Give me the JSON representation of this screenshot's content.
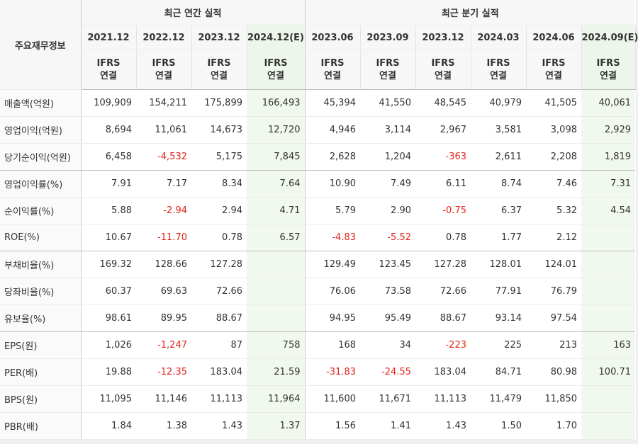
{
  "header": {
    "row_label": "주요재무정보",
    "annual_group": "최근 연간 실적",
    "quarter_group": "최근 분기 실적",
    "ifrs_line1": "IFRS",
    "ifrs_line2": "연결"
  },
  "periods": [
    "2021.12",
    "2022.12",
    "2023.12",
    "2024.12(E)",
    "2023.06",
    "2023.09",
    "2023.12",
    "2024.03",
    "2024.06",
    "2024.09(E)"
  ],
  "rows": [
    {
      "label": "매출액(억원)",
      "values": [
        "109,909",
        "154,211",
        "175,899",
        "166,493",
        "45,394",
        "41,550",
        "48,545",
        "40,979",
        "41,505",
        "40,061"
      ]
    },
    {
      "label": "영업이익(억원)",
      "values": [
        "8,694",
        "11,061",
        "14,673",
        "12,720",
        "4,946",
        "3,114",
        "2,967",
        "3,581",
        "3,098",
        "2,929"
      ]
    },
    {
      "label": "당기순이익(억원)",
      "values": [
        "6,458",
        "-4,532",
        "5,175",
        "7,845",
        "2,628",
        "1,204",
        "-363",
        "2,611",
        "2,208",
        "1,819"
      ]
    },
    {
      "label": "영업이익률(%)",
      "values": [
        "7.91",
        "7.17",
        "8.34",
        "7.64",
        "10.90",
        "7.49",
        "6.11",
        "8.74",
        "7.46",
        "7.31"
      ]
    },
    {
      "label": "순이익률(%)",
      "values": [
        "5.88",
        "-2.94",
        "2.94",
        "4.71",
        "5.79",
        "2.90",
        "-0.75",
        "6.37",
        "5.32",
        "4.54"
      ]
    },
    {
      "label": "ROE(%)",
      "values": [
        "10.67",
        "-11.70",
        "0.78",
        "6.57",
        "-4.83",
        "-5.52",
        "0.78",
        "1.77",
        "2.12",
        ""
      ]
    },
    {
      "label": "부채비율(%)",
      "values": [
        "169.32",
        "128.66",
        "127.28",
        "",
        "129.49",
        "123.45",
        "127.28",
        "128.01",
        "124.01",
        ""
      ]
    },
    {
      "label": "당좌비율(%)",
      "values": [
        "60.37",
        "69.63",
        "72.66",
        "",
        "76.06",
        "73.58",
        "72.66",
        "77.91",
        "76.79",
        ""
      ]
    },
    {
      "label": "유보율(%)",
      "values": [
        "98.61",
        "89.95",
        "88.67",
        "",
        "94.95",
        "95.49",
        "88.67",
        "93.14",
        "97.54",
        ""
      ]
    },
    {
      "label": "EPS(원)",
      "values": [
        "1,026",
        "-1,247",
        "87",
        "758",
        "168",
        "34",
        "-223",
        "225",
        "213",
        "163"
      ]
    },
    {
      "label": "PER(배)",
      "values": [
        "19.88",
        "-12.35",
        "183.04",
        "21.59",
        "-31.83",
        "-24.55",
        "183.04",
        "84.71",
        "80.98",
        "100.71"
      ]
    },
    {
      "label": "BPS(원)",
      "values": [
        "11,095",
        "11,146",
        "11,113",
        "11,964",
        "11,600",
        "11,671",
        "11,113",
        "11,479",
        "11,850",
        ""
      ]
    },
    {
      "label": "PBR(배)",
      "values": [
        "1.84",
        "1.38",
        "1.43",
        "1.37",
        "1.56",
        "1.41",
        "1.43",
        "1.50",
        "1.70",
        ""
      ]
    }
  ],
  "colors": {
    "negative": "#e1251b",
    "ifrs": "#ec6a1c",
    "estimate_bg": "#edf6ea"
  }
}
